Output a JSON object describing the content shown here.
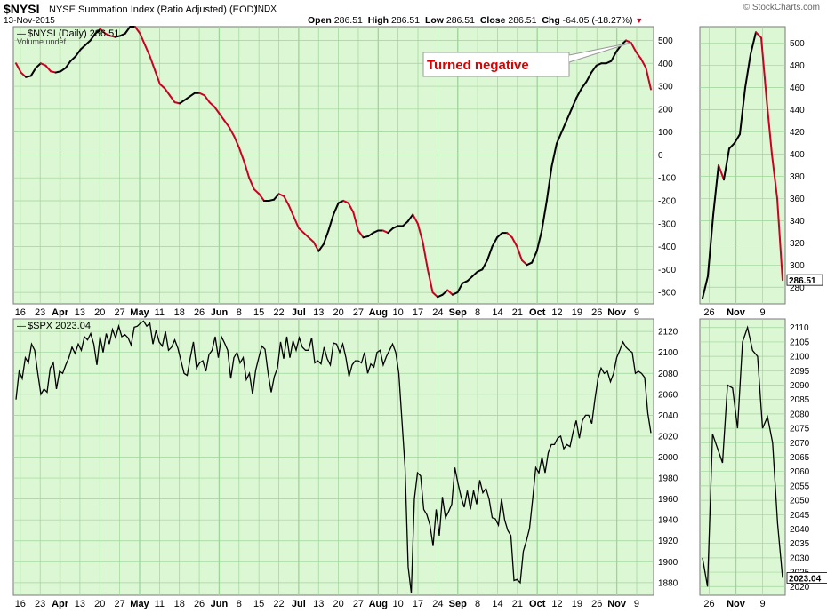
{
  "header": {
    "symbol": "$NYSI",
    "name": "NYSE Summation Index (Ratio Adjusted) (EOD)",
    "exchange": "INDX",
    "date": "13-Nov-2015",
    "brand": "© StockCharts.com",
    "ohlc": {
      "open_label": "Open",
      "open": "286.51",
      "high_label": "High",
      "high": "286.51",
      "low_label": "Low",
      "low": "286.51",
      "close_label": "Close",
      "close": "286.51",
      "chg_label": "Chg",
      "chg": "-64.05 (-18.27%)"
    }
  },
  "colors": {
    "panel_bg": "#dcf7d4",
    "grid": "#9fd49a",
    "up": "#000000",
    "down": "#cc0022",
    "annotation": "#dd0000"
  },
  "chart_data": [
    {
      "type": "line",
      "name": "nysi-main",
      "legend": "$NYSI (Daily) 286.51",
      "legend_sub": "Volume undef",
      "ylim": [
        -650,
        560
      ],
      "yticks": [
        -600,
        -500,
        -400,
        -300,
        -200,
        -100,
        0,
        100,
        200,
        300,
        400,
        500
      ],
      "last_value": "286.51",
      "annotation": "Turned negative",
      "x_labels": [
        "16",
        "23",
        "Apr",
        "13",
        "20",
        "27",
        "May",
        "11",
        "18",
        "26",
        "Jun",
        "8",
        "15",
        "22",
        "Jul",
        "13",
        "20",
        "27",
        "Aug",
        "10",
        "17",
        "24",
        "Sep",
        "8",
        "14",
        "21",
        "Oct",
        "12",
        "19",
        "26",
        "Nov",
        "9"
      ],
      "month_labels": [
        "Apr",
        "May",
        "Jun",
        "Jul",
        "Aug",
        "Sep",
        "Oct",
        "Nov"
      ],
      "values": [
        400,
        360,
        340,
        345,
        380,
        400,
        390,
        365,
        360,
        365,
        380,
        410,
        430,
        460,
        480,
        500,
        530,
        550,
        530,
        520,
        515,
        520,
        530,
        560,
        560,
        530,
        480,
        430,
        370,
        310,
        290,
        260,
        230,
        225,
        240,
        255,
        270,
        270,
        260,
        230,
        210,
        180,
        150,
        120,
        80,
        30,
        -30,
        -100,
        -150,
        -170,
        -200,
        -200,
        -195,
        -170,
        -180,
        -220,
        -270,
        -320,
        -340,
        -360,
        -380,
        -420,
        -390,
        -330,
        -260,
        -210,
        -200,
        -210,
        -250,
        -330,
        -360,
        -355,
        -340,
        -330,
        -330,
        -340,
        -320,
        -310,
        -310,
        -290,
        -260,
        -300,
        -380,
        -500,
        -600,
        -620,
        -610,
        -590,
        -610,
        -600,
        -560,
        -550,
        -530,
        -510,
        -500,
        -460,
        -400,
        -360,
        -340,
        -340,
        -360,
        -400,
        -460,
        -480,
        -470,
        -420,
        -330,
        -200,
        -50,
        50,
        100,
        150,
        200,
        250,
        290,
        320,
        360,
        390,
        400,
        400,
        410,
        450,
        480,
        500,
        490,
        450,
        420,
        380,
        286.51
      ]
    },
    {
      "type": "line",
      "name": "nysi-zoom",
      "ylim": [
        265,
        515
      ],
      "yticks": [
        280,
        300,
        320,
        340,
        360,
        380,
        400,
        420,
        440,
        460,
        480,
        500
      ],
      "x_labels": [
        "26",
        "Nov",
        "9"
      ],
      "last_value": "286.51",
      "values": [
        270,
        290,
        345,
        390,
        377,
        405,
        410,
        418,
        460,
        490,
        510,
        505,
        450,
        400,
        360,
        286.51
      ]
    },
    {
      "type": "line",
      "name": "spx-main",
      "legend": "$SPX 2023.04",
      "ylim": [
        1868,
        2132
      ],
      "yticks": [
        1880,
        1900,
        1920,
        1940,
        1960,
        1980,
        2000,
        2020,
        2040,
        2060,
        2080,
        2100,
        2120
      ],
      "x_labels": [
        "16",
        "23",
        "Apr",
        "13",
        "20",
        "27",
        "May",
        "11",
        "18",
        "26",
        "Jun",
        "8",
        "15",
        "22",
        "Jul",
        "13",
        "20",
        "27",
        "Aug",
        "10",
        "17",
        "24",
        "Sep",
        "8",
        "14",
        "21",
        "Oct",
        "12",
        "19",
        "26",
        "Nov",
        "9"
      ],
      "month_labels": [
        "Apr",
        "May",
        "Jun",
        "Jul",
        "Aug",
        "Sep",
        "Oct",
        "Nov"
      ],
      "values": [
        2055,
        2082,
        2075,
        2095,
        2090,
        2108,
        2102,
        2080,
        2060,
        2065,
        2062,
        2085,
        2090,
        2065,
        2082,
        2080,
        2088,
        2095,
        2105,
        2099,
        2108,
        2102,
        2115,
        2112,
        2118,
        2108,
        2088,
        2115,
        2100,
        2118,
        2108,
        2122,
        2114,
        2125,
        2115,
        2117,
        2114,
        2107,
        2124,
        2125,
        2128,
        2130,
        2125,
        2128,
        2108,
        2121,
        2110,
        2106,
        2120,
        2102,
        2105,
        2112,
        2104,
        2092,
        2080,
        2078,
        2095,
        2110,
        2085,
        2090,
        2092,
        2082,
        2098,
        2102,
        2115,
        2095,
        2115,
        2109,
        2102,
        2075,
        2095,
        2100,
        2090,
        2095,
        2074,
        2080,
        2060,
        2083,
        2095,
        2106,
        2103,
        2080,
        2062,
        2077,
        2085,
        2110,
        2094,
        2115,
        2095,
        2111,
        2102,
        2114,
        2105,
        2102,
        2102,
        2114,
        2090,
        2092,
        2089,
        2105,
        2094,
        2088,
        2109,
        2108,
        2100,
        2108,
        2095,
        2077,
        2088,
        2092,
        2092,
        2090,
        2100,
        2080,
        2089,
        2086,
        2100,
        2102,
        2088,
        2096,
        2102,
        2108,
        2100,
        2080,
        2035,
        1990,
        1895,
        1870,
        1960,
        1985,
        1982,
        1950,
        1945,
        1935,
        1915,
        1950,
        1925,
        1962,
        1942,
        1948,
        1955,
        1990,
        1975,
        1962,
        1952,
        1968,
        1950,
        1968,
        1955,
        1978,
        1966,
        1970,
        1960,
        1942,
        1941,
        1935,
        1960,
        1940,
        1930,
        1925,
        1882,
        1883,
        1880,
        1910,
        1920,
        1932,
        1960,
        1990,
        1985,
        2000,
        1985,
        2004,
        2012,
        2012,
        2018,
        2020,
        2008,
        2012,
        2010,
        2024,
        2035,
        2018,
        2035,
        2040,
        2040,
        2032,
        2055,
        2075,
        2085,
        2080,
        2082,
        2072,
        2080,
        2095,
        2102,
        2110,
        2105,
        2102,
        2100,
        2080,
        2082,
        2080,
        2076,
        2042,
        2023.04
      ]
    },
    {
      "type": "line",
      "name": "spx-zoom",
      "ylim": [
        2017,
        2113
      ],
      "yticks": [
        2020,
        2025,
        2030,
        2035,
        2040,
        2045,
        2050,
        2055,
        2060,
        2065,
        2070,
        2075,
        2080,
        2085,
        2090,
        2095,
        2100,
        2105,
        2110
      ],
      "x_labels": [
        "26",
        "Nov",
        "9"
      ],
      "last_value": "2023.04",
      "values": [
        2030,
        2020,
        2073,
        2068,
        2063,
        2090,
        2089,
        2075,
        2105,
        2110,
        2102,
        2100,
        2075,
        2079,
        2070,
        2042,
        2023.04
      ]
    }
  ]
}
